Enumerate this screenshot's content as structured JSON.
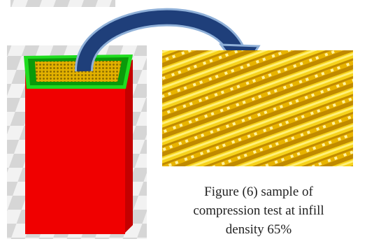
{
  "caption": {
    "lines": [
      "Figure (6) sample of",
      "compression test at infill",
      "density 65%"
    ]
  }
}
